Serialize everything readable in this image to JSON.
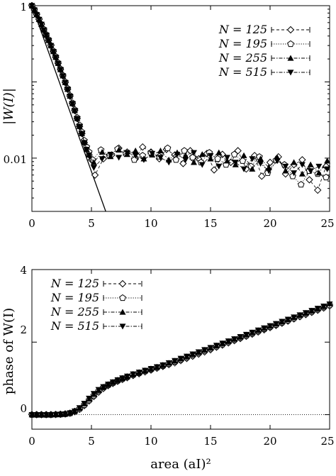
{
  "chart_data": [
    {
      "type": "scatter",
      "xlabel": "",
      "ylabel": "|W(I)|",
      "yscale": "log",
      "xlim": [
        0,
        25
      ],
      "ylim": [
        0.002,
        1
      ],
      "xticks": [
        "0",
        "5",
        "10",
        "15",
        "20",
        "25"
      ],
      "yticks": [
        "1",
        "0.01"
      ],
      "legend_position": "top-right",
      "series": [
        {
          "name": "N = 125",
          "marker": "diamond-open",
          "line": "dashed",
          "x": [
            0,
            0.2,
            0.4,
            0.6,
            0.8,
            1.0,
            1.2,
            1.4,
            1.6,
            1.8,
            2.0,
            2.2,
            2.4,
            2.6,
            2.8,
            3.0,
            3.2,
            3.4,
            3.6,
            3.8,
            4.0,
            4.2,
            4.4,
            4.6,
            4.8,
            5.0,
            5.3,
            6.0,
            6.7,
            7.3,
            8.0,
            8.7,
            9.3,
            10.0,
            10.7,
            11.3,
            12.0,
            12.7,
            13.3,
            14.0,
            14.7,
            15.3,
            16.0,
            16.7,
            17.3,
            18.0,
            18.7,
            19.3,
            20.0,
            20.7,
            21.3,
            22.0,
            22.7,
            23.3,
            24.0,
            24.7
          ],
          "y": [
            1,
            0.88,
            0.76,
            0.66,
            0.57,
            0.48,
            0.41,
            0.35,
            0.3,
            0.25,
            0.21,
            0.175,
            0.145,
            0.12,
            0.098,
            0.08,
            0.065,
            0.052,
            0.042,
            0.033,
            0.026,
            0.021,
            0.016,
            0.013,
            0.011,
            0.0095,
            0.006,
            0.0098,
            0.011,
            0.0135,
            0.012,
            0.0098,
            0.014,
            0.012,
            0.0098,
            0.013,
            0.011,
            0.0085,
            0.0125,
            0.0098,
            0.0115,
            0.007,
            0.0112,
            0.0088,
            0.0125,
            0.0072,
            0.0108,
            0.0058,
            0.0088,
            0.0104,
            0.0062,
            0.0082,
            0.0095,
            0.0052,
            0.0038,
            0.0078
          ]
        },
        {
          "name": "N = 195",
          "marker": "pentagon-open",
          "line": "dotted",
          "x": [
            0,
            0.2,
            0.4,
            0.6,
            0.8,
            1.0,
            1.2,
            1.4,
            1.6,
            1.8,
            2.0,
            2.2,
            2.4,
            2.6,
            2.8,
            3.0,
            3.2,
            3.4,
            3.6,
            3.8,
            4.0,
            4.2,
            4.4,
            4.6,
            4.8,
            5.1,
            5.8,
            6.5,
            7.2,
            7.9,
            8.6,
            9.3,
            10.0,
            10.7,
            11.4,
            12.1,
            12.8,
            13.5,
            14.2,
            14.9,
            15.6,
            16.3,
            17.0,
            17.7,
            18.4,
            19.1,
            19.8,
            20.5,
            21.2,
            21.9,
            22.6,
            23.3,
            24.0,
            24.7
          ],
          "y": [
            1,
            0.89,
            0.77,
            0.66,
            0.57,
            0.49,
            0.42,
            0.36,
            0.3,
            0.255,
            0.215,
            0.178,
            0.148,
            0.122,
            0.1,
            0.082,
            0.066,
            0.053,
            0.043,
            0.034,
            0.027,
            0.022,
            0.017,
            0.014,
            0.012,
            0.0095,
            0.0128,
            0.0108,
            0.0132,
            0.0115,
            0.0095,
            0.0108,
            0.0118,
            0.0105,
            0.0135,
            0.0095,
            0.0125,
            0.0102,
            0.0088,
            0.0118,
            0.0098,
            0.0082,
            0.0112,
            0.0092,
            0.0078,
            0.0104,
            0.0064,
            0.0094,
            0.0082,
            0.0058,
            0.0045,
            0.0068,
            0.0062,
            0.0056
          ]
        },
        {
          "name": "N = 255",
          "marker": "triangle-filled",
          "line": "dashdot",
          "x": [
            0,
            0.2,
            0.4,
            0.6,
            0.8,
            1.0,
            1.2,
            1.4,
            1.6,
            1.8,
            2.0,
            2.2,
            2.4,
            2.6,
            2.8,
            3.0,
            3.2,
            3.4,
            3.6,
            3.8,
            4.0,
            4.2,
            4.4,
            4.6,
            4.8,
            5.2,
            5.9,
            6.6,
            7.3,
            8.0,
            8.7,
            9.4,
            10.1,
            10.8,
            11.5,
            12.2,
            12.9,
            13.6,
            14.3,
            15.0,
            15.7,
            16.4,
            17.1,
            17.8,
            18.5,
            19.2,
            19.9,
            20.6,
            21.3,
            22.0,
            22.7,
            23.4,
            24.1,
            24.8
          ],
          "y": [
            1,
            0.88,
            0.76,
            0.66,
            0.57,
            0.48,
            0.41,
            0.35,
            0.3,
            0.25,
            0.21,
            0.175,
            0.145,
            0.12,
            0.098,
            0.08,
            0.065,
            0.052,
            0.042,
            0.033,
            0.026,
            0.021,
            0.016,
            0.013,
            0.011,
            0.0088,
            0.012,
            0.0105,
            0.0128,
            0.0112,
            0.0125,
            0.0098,
            0.011,
            0.0125,
            0.0095,
            0.0118,
            0.0108,
            0.0088,
            0.0112,
            0.0098,
            0.0118,
            0.0092,
            0.0082,
            0.0108,
            0.0072,
            0.0098,
            0.0075,
            0.0102,
            0.0068,
            0.0088,
            0.0062,
            0.0082,
            0.0064,
            0.0092
          ]
        },
        {
          "name": "N = 515",
          "marker": "triangle-down-filled",
          "line": "dashdot",
          "x": [
            0,
            0.2,
            0.4,
            0.6,
            0.8,
            1.0,
            1.2,
            1.4,
            1.6,
            1.8,
            2.0,
            2.2,
            2.4,
            2.6,
            2.8,
            3.0,
            3.2,
            3.4,
            3.6,
            3.8,
            4.0,
            4.2,
            4.4,
            4.6,
            4.8,
            5.2,
            5.9,
            6.6,
            7.3,
            8.0,
            8.7,
            9.4,
            10.1,
            10.8,
            11.5,
            12.2,
            12.9,
            13.6,
            14.3,
            15.0,
            15.7,
            16.4,
            17.1,
            17.8,
            18.5,
            19.2,
            19.9,
            20.6,
            21.3,
            22.0,
            22.7,
            23.4,
            24.1,
            24.8
          ],
          "y": [
            1,
            0.88,
            0.76,
            0.66,
            0.57,
            0.48,
            0.41,
            0.35,
            0.3,
            0.25,
            0.21,
            0.175,
            0.145,
            0.12,
            0.098,
            0.08,
            0.065,
            0.052,
            0.042,
            0.033,
            0.026,
            0.021,
            0.016,
            0.013,
            0.011,
            0.0075,
            0.0098,
            0.0112,
            0.0102,
            0.0118,
            0.0108,
            0.0095,
            0.0115,
            0.0102,
            0.0088,
            0.0112,
            0.0095,
            0.0118,
            0.0082,
            0.0108,
            0.0078,
            0.0102,
            0.0088,
            0.0072,
            0.0098,
            0.0085,
            0.0068,
            0.0092,
            0.0078,
            0.0064,
            0.0082,
            0.0068,
            0.0078,
            0.0072
          ]
        }
      ],
      "fit_line": {
        "x": [
          0,
          6.2
        ],
        "y": [
          1,
          0.002
        ]
      }
    },
    {
      "type": "scatter",
      "xlabel": "area (aI)²",
      "ylabel": "phase of W(I)",
      "xlim": [
        0,
        25
      ],
      "ylim": [
        -0.4,
        4
      ],
      "xticks": [
        "0",
        "5",
        "10",
        "15",
        "20",
        "25"
      ],
      "yticks": [
        "0",
        "2",
        "4"
      ],
      "legend_position": "top-left",
      "series": [
        {
          "name": "N = 125",
          "marker": "diamond-open",
          "line": "dashed",
          "x": [
            0,
            0.4,
            0.8,
            1.2,
            1.6,
            2.0,
            2.4,
            2.8,
            3.2,
            3.6,
            4.0,
            4.4,
            4.8,
            5.2,
            5.6,
            6.0,
            6.4,
            6.8,
            7.2,
            7.6,
            8.0,
            8.5,
            9.0,
            9.5,
            10.0,
            10.5,
            11.0,
            11.5,
            12.0,
            12.5,
            13.0,
            13.5,
            14.0,
            14.5,
            15.0,
            15.5,
            16.0,
            16.5,
            17.0,
            17.5,
            18.0,
            18.5,
            19.0,
            19.5,
            20.0,
            20.5,
            21.0,
            21.5,
            22.0,
            22.5,
            23.0,
            23.5,
            24.0,
            24.5,
            25.0
          ],
          "y": [
            0,
            0,
            0,
            0,
            0,
            0.005,
            0.01,
            0.02,
            0.04,
            0.08,
            0.15,
            0.25,
            0.38,
            0.5,
            0.62,
            0.72,
            0.8,
            0.86,
            0.92,
            0.97,
            1.02,
            1.08,
            1.13,
            1.18,
            1.23,
            1.28,
            1.33,
            1.38,
            1.43,
            1.49,
            1.55,
            1.61,
            1.67,
            1.73,
            1.79,
            1.86,
            1.92,
            1.98,
            2.04,
            2.1,
            2.16,
            2.22,
            2.28,
            2.34,
            2.4,
            2.46,
            2.52,
            2.58,
            2.64,
            2.7,
            2.76,
            2.82,
            2.88,
            2.94,
            3.0
          ]
        },
        {
          "name": "N = 195",
          "marker": "pentagon-open",
          "line": "dotted",
          "x": [
            0,
            0.4,
            0.8,
            1.2,
            1.6,
            2.0,
            2.4,
            2.8,
            3.2,
            3.6,
            4.0,
            4.4,
            4.8,
            5.2,
            5.6,
            6.0,
            6.4,
            6.8,
            7.2,
            7.6,
            8.0,
            8.5,
            9.0,
            9.5,
            10.0,
            10.5,
            11.0,
            11.5,
            12.0,
            12.5,
            13.0,
            13.5,
            14.0,
            14.5,
            15.0,
            15.5,
            16.0,
            16.5,
            17.0,
            17.5,
            18.0,
            18.5,
            19.0,
            19.5,
            20.0,
            20.5,
            21.0,
            21.5,
            22.0,
            22.5,
            23.0,
            23.5,
            24.0,
            24.5,
            25.0
          ],
          "y": [
            0,
            0,
            0,
            0,
            0,
            0.005,
            0.01,
            0.02,
            0.04,
            0.09,
            0.16,
            0.27,
            0.4,
            0.53,
            0.65,
            0.75,
            0.82,
            0.88,
            0.94,
            0.99,
            1.04,
            1.1,
            1.15,
            1.2,
            1.25,
            1.3,
            1.35,
            1.4,
            1.46,
            1.52,
            1.58,
            1.64,
            1.7,
            1.76,
            1.82,
            1.88,
            1.94,
            2.0,
            2.06,
            2.12,
            2.18,
            2.24,
            2.3,
            2.36,
            2.42,
            2.48,
            2.54,
            2.6,
            2.66,
            2.72,
            2.78,
            2.84,
            2.9,
            2.96,
            3.02
          ]
        },
        {
          "name": "N = 255",
          "marker": "triangle-filled",
          "line": "dashdot",
          "x": [
            0,
            0.4,
            0.8,
            1.2,
            1.6,
            2.0,
            2.4,
            2.8,
            3.2,
            3.6,
            4.0,
            4.4,
            4.8,
            5.2,
            5.6,
            6.0,
            6.4,
            6.8,
            7.2,
            7.6,
            8.0,
            8.5,
            9.0,
            9.5,
            10.0,
            10.5,
            11.0,
            11.5,
            12.0,
            12.5,
            13.0,
            13.5,
            14.0,
            14.5,
            15.0,
            15.5,
            16.0,
            16.5,
            17.0,
            17.5,
            18.0,
            18.5,
            19.0,
            19.5,
            20.0,
            20.5,
            21.0,
            21.5,
            22.0,
            22.5,
            23.0,
            23.5,
            24.0,
            24.5,
            25.0
          ],
          "y": [
            0,
            0,
            0,
            0,
            0,
            0.005,
            0.01,
            0.02,
            0.05,
            0.1,
            0.18,
            0.3,
            0.43,
            0.56,
            0.67,
            0.76,
            0.83,
            0.89,
            0.95,
            1.0,
            1.05,
            1.11,
            1.16,
            1.21,
            1.26,
            1.31,
            1.36,
            1.42,
            1.48,
            1.54,
            1.6,
            1.66,
            1.72,
            1.78,
            1.84,
            1.9,
            1.96,
            2.02,
            2.08,
            2.14,
            2.2,
            2.26,
            2.32,
            2.38,
            2.44,
            2.5,
            2.56,
            2.62,
            2.68,
            2.74,
            2.8,
            2.86,
            2.92,
            2.98,
            3.06
          ]
        },
        {
          "name": "N = 515",
          "marker": "triangle-down-filled",
          "line": "dashdot",
          "x": [
            0,
            0.4,
            0.8,
            1.2,
            1.6,
            2.0,
            2.4,
            2.8,
            3.2,
            3.6,
            4.0,
            4.4,
            4.8,
            5.2,
            5.6,
            6.0,
            6.4,
            6.8,
            7.2,
            7.6,
            8.0,
            8.5,
            9.0,
            9.5,
            10.0,
            10.5,
            11.0,
            11.5,
            12.0,
            12.5,
            13.0,
            13.5,
            14.0,
            14.5,
            15.0,
            15.5,
            16.0,
            16.5,
            17.0,
            17.5,
            18.0,
            18.5,
            19.0,
            19.5,
            20.0,
            20.5,
            21.0,
            21.5,
            22.0,
            22.5,
            23.0,
            23.5,
            24.0,
            24.5,
            25.0
          ],
          "y": [
            0,
            0,
            0,
            0,
            0,
            0.005,
            0.01,
            0.02,
            0.05,
            0.1,
            0.19,
            0.31,
            0.45,
            0.58,
            0.69,
            0.77,
            0.84,
            0.9,
            0.96,
            1.01,
            1.06,
            1.12,
            1.17,
            1.22,
            1.27,
            1.32,
            1.37,
            1.43,
            1.49,
            1.55,
            1.61,
            1.67,
            1.73,
            1.79,
            1.85,
            1.91,
            1.97,
            2.03,
            2.09,
            2.15,
            2.21,
            2.27,
            2.33,
            2.39,
            2.45,
            2.51,
            2.57,
            2.63,
            2.69,
            2.75,
            2.81,
            2.87,
            2.93,
            2.99,
            3.05
          ]
        }
      ],
      "zero_line": {
        "y": 0,
        "style": "dotted"
      }
    }
  ]
}
